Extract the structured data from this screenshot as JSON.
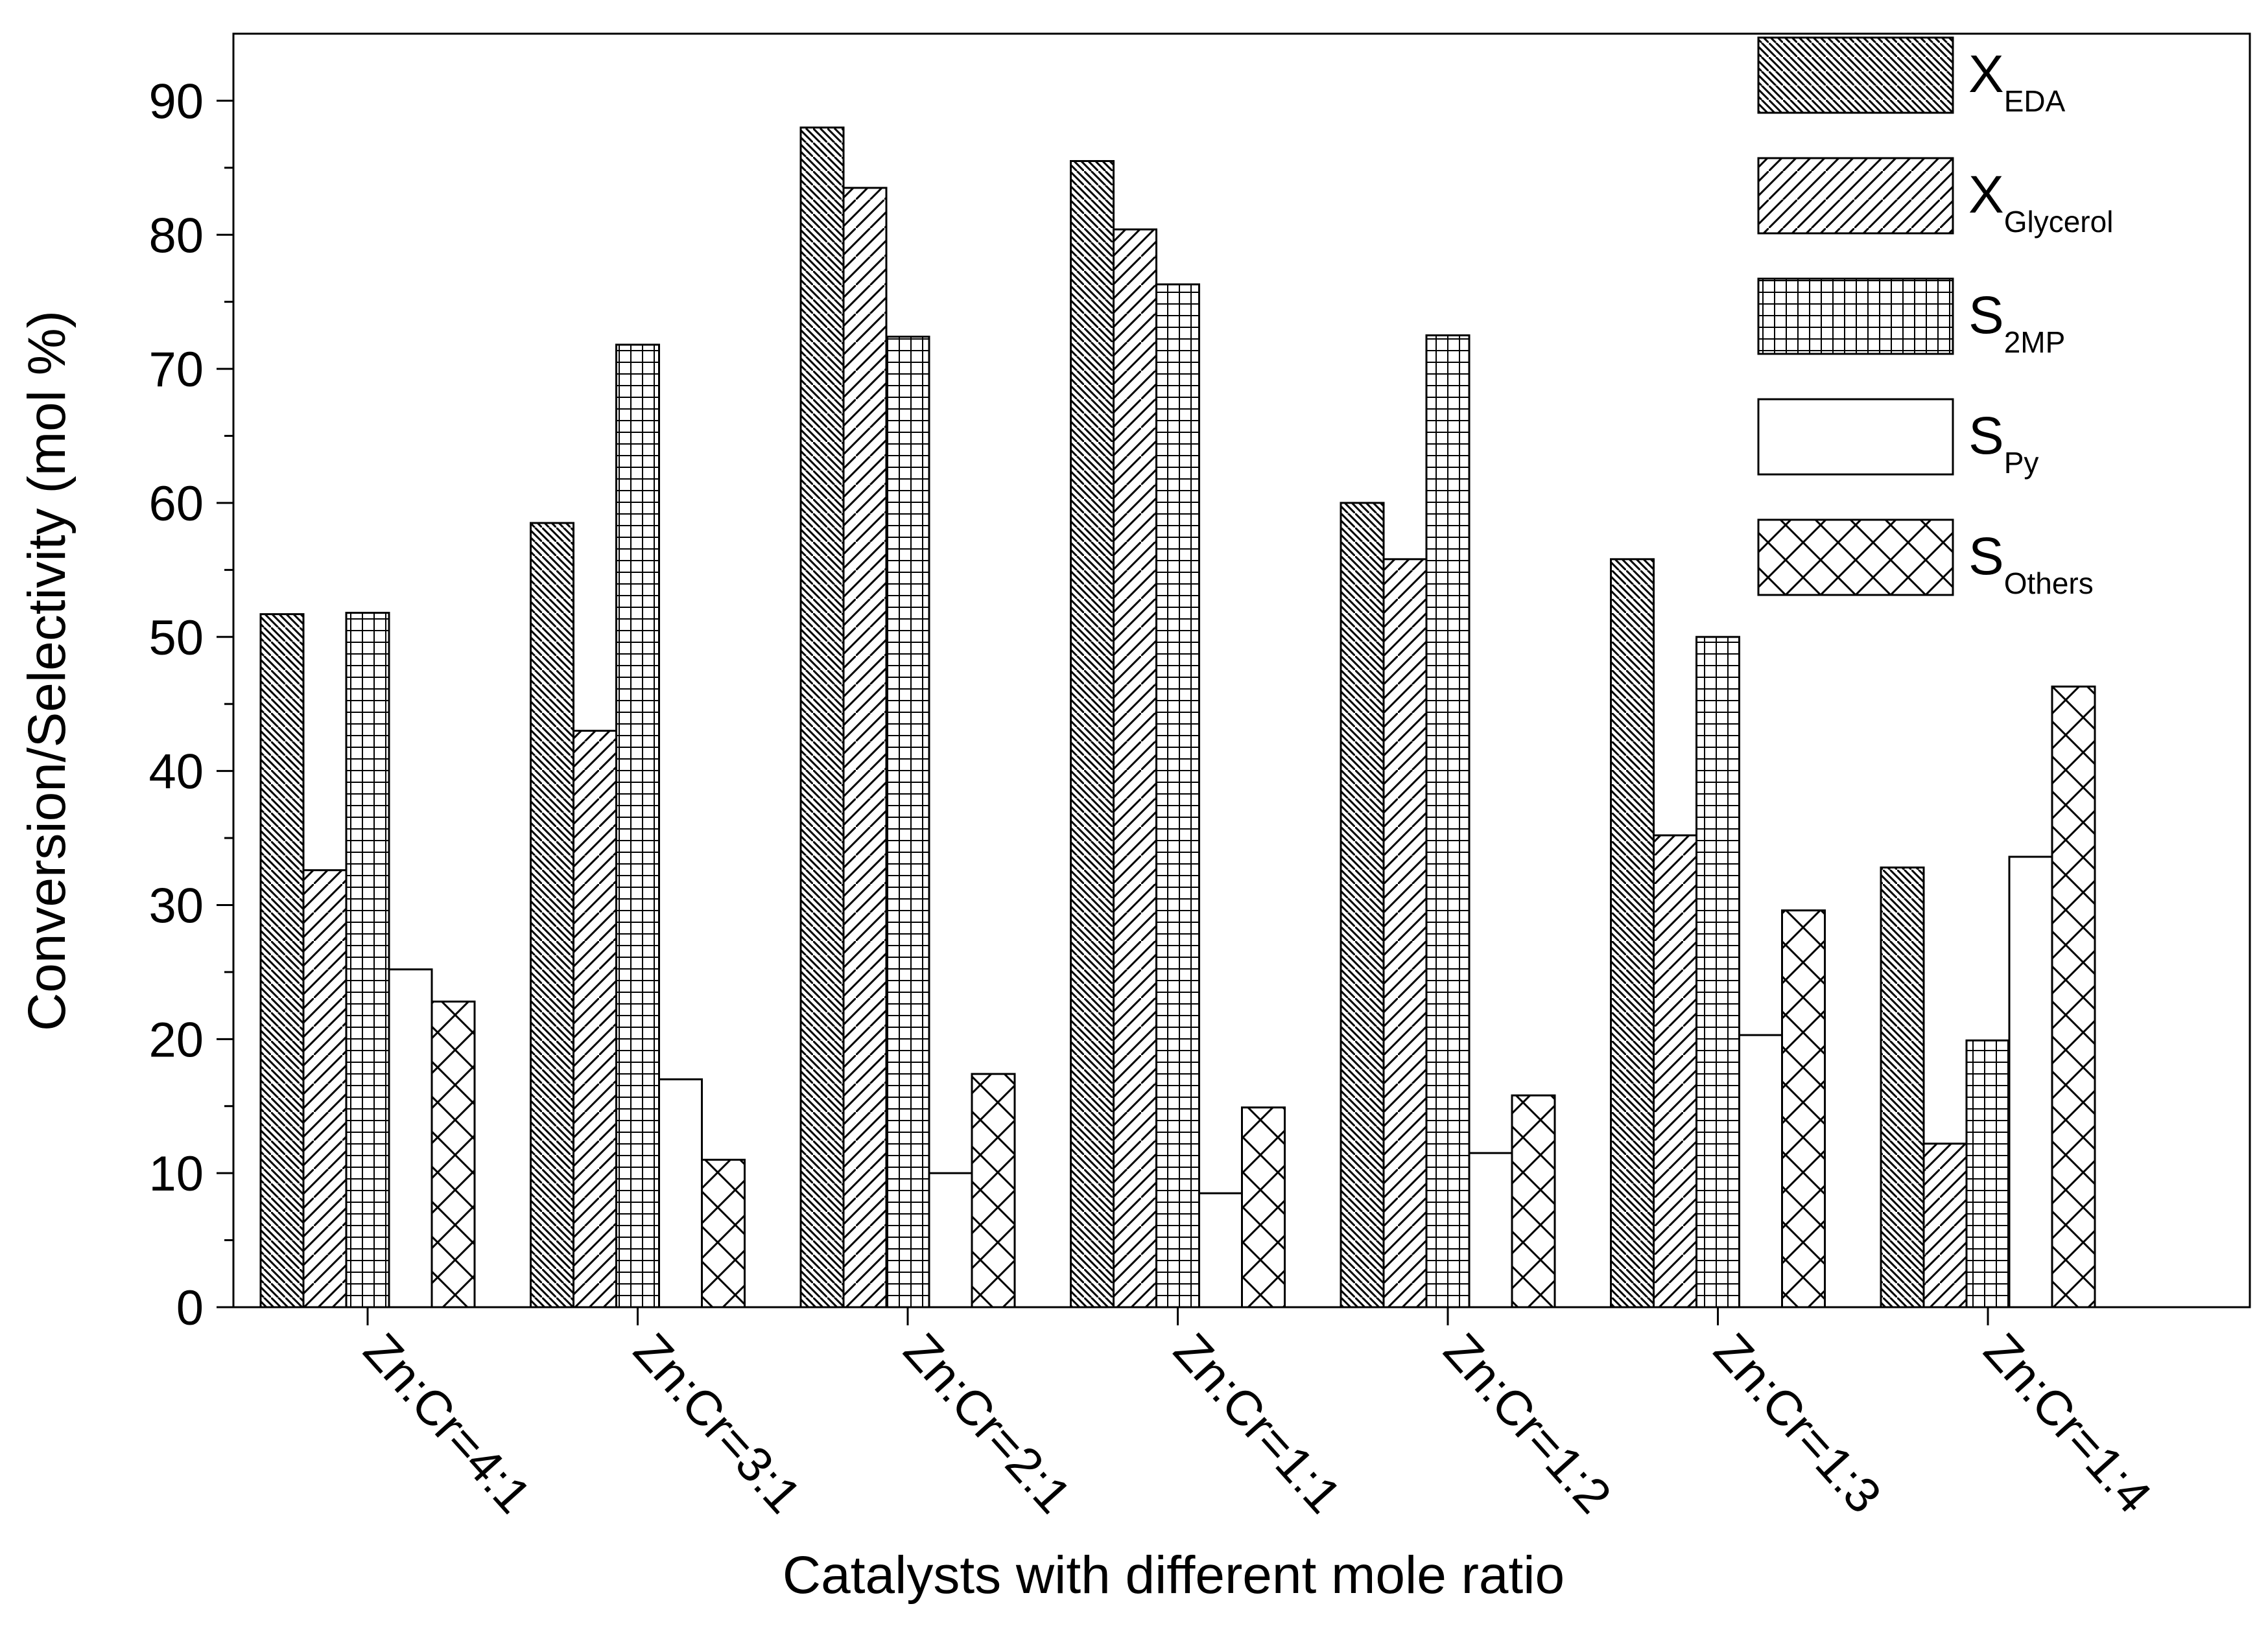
{
  "chart_data": {
    "type": "bar",
    "title": "",
    "xlabel": "Catalysts with different mole ratio",
    "ylabel": "Conversion/Selectivity (mol %)",
    "ylim": [
      0,
      95
    ],
    "yticks": [
      0,
      10,
      20,
      30,
      40,
      50,
      60,
      70,
      80,
      90
    ],
    "ytick_labels": [
      "0",
      "10",
      "20",
      "30",
      "40",
      "50",
      "60",
      "70",
      "80",
      "90"
    ],
    "grid": false,
    "legend_position": "top-right",
    "categories": [
      "Zn:Cr=4:1",
      "Zn:Cr=3:1",
      "Zn:Cr=2:1",
      "Zn:Cr=1:1",
      "Zn:Cr=1:2",
      "Zn:Cr=1:3",
      "Zn:Cr=1:4"
    ],
    "series": [
      {
        "name": "XEDA",
        "label_main": "X",
        "label_sub": "EDA",
        "pattern": "back-diagonal",
        "values": [
          51.7,
          58.5,
          88.0,
          85.5,
          60.0,
          55.8,
          32.8
        ]
      },
      {
        "name": "XGlycerol",
        "label_main": "X",
        "label_sub": "Glycerol",
        "pattern": "forward-diagonal",
        "values": [
          32.6,
          43.0,
          83.5,
          80.4,
          55.8,
          35.2,
          12.2
        ]
      },
      {
        "name": "S2MP",
        "label_main": "S",
        "label_sub": "2MP",
        "pattern": "grid",
        "values": [
          51.8,
          71.8,
          72.4,
          76.3,
          72.5,
          50.0,
          19.9
        ]
      },
      {
        "name": "SPy",
        "label_main": "S",
        "label_sub": "Py",
        "pattern": "none",
        "values": [
          25.2,
          17.0,
          10.0,
          8.5,
          11.5,
          20.3,
          33.6
        ]
      },
      {
        "name": "SOthers",
        "label_main": "S",
        "label_sub": "Others",
        "pattern": "cross",
        "values": [
          22.8,
          11.0,
          17.4,
          14.9,
          15.8,
          29.6,
          46.3
        ]
      }
    ]
  }
}
